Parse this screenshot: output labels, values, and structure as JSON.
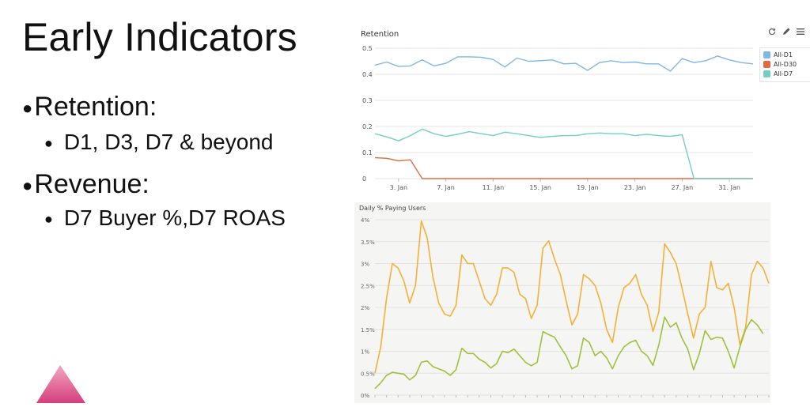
{
  "slide": {
    "title": "Early Indicators",
    "bullets": [
      {
        "text": "Retention:",
        "sub": [
          "D1, D3, D7 & beyond"
        ]
      },
      {
        "text": "Revenue:",
        "sub": [
          "D7 Buyer %,D7 ROAS"
        ]
      }
    ]
  },
  "icons": [
    "refresh-icon",
    "pencil-icon",
    "menu-icon"
  ],
  "chart_data": [
    {
      "type": "line",
      "title": "Retention",
      "xlabel": "",
      "ylabel": "",
      "ylim": [
        0,
        0.5
      ],
      "yticks": [
        "0",
        "0.1",
        "0.2",
        "0.3",
        "0.4",
        "0.5"
      ],
      "xticks": [
        {
          "label": "3. Jan",
          "i": 2
        },
        {
          "label": "7. Jan",
          "i": 6
        },
        {
          "label": "11. Jan",
          "i": 10
        },
        {
          "label": "15. Jan",
          "i": 14
        },
        {
          "label": "19. Jan",
          "i": 18
        },
        {
          "label": "23. Jan",
          "i": 22
        },
        {
          "label": "27. Jan",
          "i": 26
        },
        {
          "label": "31. Jan",
          "i": 30
        }
      ],
      "legend_position": "top-right",
      "grid": true,
      "x": [
        "1. Jan",
        "2. Jan",
        "3. Jan",
        "4. Jan",
        "5. Jan",
        "6. Jan",
        "7. Jan",
        "8. Jan",
        "9. Jan",
        "10. Jan",
        "11. Jan",
        "12. Jan",
        "13. Jan",
        "14. Jan",
        "15. Jan",
        "16. Jan",
        "17. Jan",
        "18. Jan",
        "19. Jan",
        "20. Jan",
        "21. Jan",
        "22. Jan",
        "23. Jan",
        "24. Jan",
        "25. Jan",
        "26. Jan",
        "27. Jan",
        "28. Jan",
        "29. Jan",
        "30. Jan",
        "31. Jan",
        "1. Feb",
        "2. Feb"
      ],
      "series": [
        {
          "name": "All-D1",
          "color": "#7fb7e6",
          "values": [
            0.435,
            0.447,
            0.43,
            0.432,
            0.455,
            0.432,
            0.442,
            0.467,
            0.467,
            0.465,
            0.457,
            0.428,
            0.462,
            0.45,
            0.452,
            0.455,
            0.44,
            0.442,
            0.415,
            0.445,
            0.452,
            0.445,
            0.447,
            0.44,
            0.44,
            0.412,
            0.46,
            0.445,
            0.452,
            0.47,
            0.455,
            0.445,
            0.44
          ]
        },
        {
          "name": "All-D30",
          "color": "#e06b3f",
          "values": [
            0.08,
            0.078,
            0.068,
            0.072,
            0.0,
            0.0,
            0.0,
            0.0,
            0.0,
            0.0,
            0.0,
            0.0,
            0.0,
            0.0,
            0.0,
            0.0,
            0.0,
            0.0,
            0.0,
            0.0,
            0.0,
            0.0,
            0.0,
            0.0,
            0.0,
            0.0,
            0.0,
            0.0,
            0.0,
            0.0,
            0.0,
            0.0,
            0.0
          ]
        },
        {
          "name": "All-D7",
          "color": "#73cfc4",
          "values": [
            0.172,
            0.16,
            0.145,
            0.165,
            0.19,
            0.172,
            0.162,
            0.17,
            0.18,
            0.172,
            0.165,
            0.178,
            0.172,
            0.165,
            0.158,
            0.162,
            0.165,
            0.165,
            0.172,
            0.175,
            0.172,
            0.172,
            0.165,
            0.17,
            0.165,
            0.162,
            0.168,
            0.0,
            0.0,
            0.0,
            0.0,
            0.0,
            0.0
          ]
        }
      ]
    },
    {
      "type": "line",
      "title": "Daily % Paying Users",
      "xlabel": "",
      "ylabel": "",
      "ylim": [
        0,
        4
      ],
      "yticks": [
        "0%",
        "0.5%",
        "1%",
        "1.5%",
        "2%",
        "2.5%",
        "3%",
        "3.5%",
        "4%"
      ],
      "grid": true,
      "series": [
        {
          "name": "",
          "color": "#f5b03a",
          "values": [
            0.5,
            1.1,
            2.2,
            3.0,
            2.9,
            2.6,
            2.1,
            2.5,
            3.97,
            3.6,
            2.7,
            2.1,
            1.85,
            1.8,
            2.05,
            3.2,
            3.0,
            3.0,
            2.6,
            2.2,
            2.05,
            2.3,
            2.9,
            2.9,
            2.8,
            2.3,
            2.2,
            1.75,
            2.05,
            3.35,
            3.52,
            3.1,
            2.75,
            2.15,
            1.6,
            1.85,
            2.75,
            2.65,
            2.5,
            2.1,
            1.5,
            1.2,
            2.0,
            2.45,
            2.55,
            2.75,
            2.3,
            2.05,
            1.45,
            1.9,
            3.45,
            3.25,
            3.0,
            2.45,
            1.85,
            1.3,
            1.85,
            2.0,
            3.05,
            2.45,
            2.4,
            2.55,
            2.0,
            1.15,
            1.55,
            2.75,
            3.05,
            2.9,
            2.55
          ]
        },
        {
          "name": "",
          "color": "#9fc23e",
          "values": [
            0.15,
            0.28,
            0.45,
            0.52,
            0.5,
            0.48,
            0.35,
            0.45,
            0.75,
            0.78,
            0.65,
            0.6,
            0.55,
            0.45,
            0.58,
            1.07,
            0.95,
            0.95,
            0.82,
            0.75,
            0.62,
            0.72,
            1.0,
            0.97,
            1.05,
            0.9,
            0.75,
            0.67,
            0.75,
            1.45,
            1.38,
            1.32,
            1.1,
            0.9,
            0.6,
            0.67,
            1.3,
            1.2,
            0.9,
            1.0,
            0.85,
            0.6,
            0.9,
            1.1,
            1.2,
            1.25,
            1.0,
            0.9,
            0.68,
            1.15,
            1.78,
            1.55,
            1.65,
            1.3,
            1.05,
            0.58,
            0.95,
            1.47,
            1.27,
            1.32,
            1.3,
            1.0,
            0.62,
            1.1,
            1.5,
            1.72,
            1.6,
            1.4
          ]
        }
      ]
    }
  ]
}
